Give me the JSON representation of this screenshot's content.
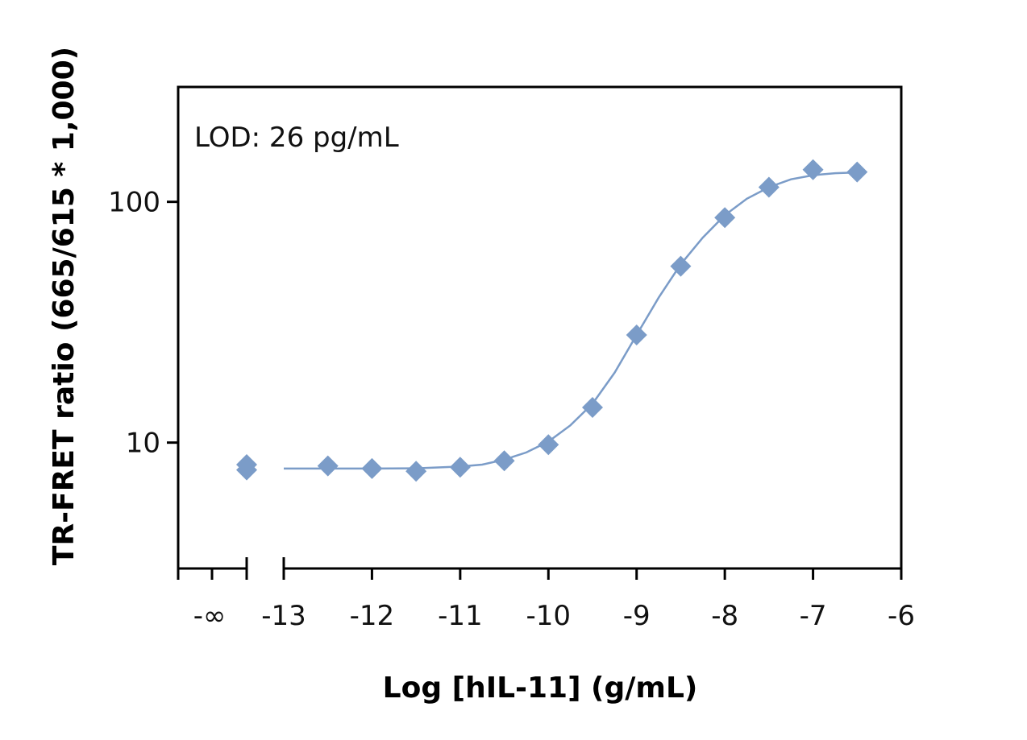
{
  "chart_data": {
    "type": "scatter",
    "xlabel": "Log [hIL-11] (g/mL)",
    "ylabel": "TR-FRET ratio (665/615 * 1,000)",
    "annotation": "LOD: 26 pg/mL",
    "x_scale": "log10 concentration",
    "y_scale": "log",
    "xlim": [
      -13,
      -6
    ],
    "ylim": [
      3,
      300
    ],
    "x_ticks": [
      -13,
      -12,
      -11,
      -10,
      -9,
      -8,
      -7,
      -6
    ],
    "x_tick_labels": [
      "-13",
      "-12",
      "-11",
      "-10",
      "-9",
      "-8",
      "-7",
      "-6"
    ],
    "x_break_label": "-∞",
    "y_ticks": [
      10,
      100
    ],
    "y_tick_labels": [
      "10",
      "100"
    ],
    "grid": false,
    "marker": "diamond",
    "color": "#7b9cc8",
    "blank_points": [
      {
        "x": "-∞",
        "y": 8.1
      },
      {
        "x": "-∞",
        "y": 7.7
      }
    ],
    "points": [
      {
        "x": -12.5,
        "y": 8.0
      },
      {
        "x": -12.0,
        "y": 7.8
      },
      {
        "x": -11.5,
        "y": 7.6
      },
      {
        "x": -11.0,
        "y": 7.9
      },
      {
        "x": -10.5,
        "y": 8.4
      },
      {
        "x": -10.0,
        "y": 9.8
      },
      {
        "x": -9.5,
        "y": 14.0
      },
      {
        "x": -9.0,
        "y": 28.0
      },
      {
        "x": -8.5,
        "y": 54.0
      },
      {
        "x": -8.0,
        "y": 86.0
      },
      {
        "x": -7.5,
        "y": 115.0
      },
      {
        "x": -7.0,
        "y": 136.0
      },
      {
        "x": -6.5,
        "y": 133.0
      }
    ],
    "fit_curve": [
      {
        "x": -13.0,
        "y": 7.8
      },
      {
        "x": -12.5,
        "y": 7.8
      },
      {
        "x": -12.0,
        "y": 7.8
      },
      {
        "x": -11.5,
        "y": 7.82
      },
      {
        "x": -11.0,
        "y": 7.95
      },
      {
        "x": -10.75,
        "y": 8.1
      },
      {
        "x": -10.5,
        "y": 8.5
      },
      {
        "x": -10.25,
        "y": 9.1
      },
      {
        "x": -10.0,
        "y": 10.1
      },
      {
        "x": -9.75,
        "y": 11.8
      },
      {
        "x": -9.5,
        "y": 14.5
      },
      {
        "x": -9.25,
        "y": 19.5
      },
      {
        "x": -9.0,
        "y": 28.0
      },
      {
        "x": -8.75,
        "y": 40.0
      },
      {
        "x": -8.5,
        "y": 55.0
      },
      {
        "x": -8.25,
        "y": 71.0
      },
      {
        "x": -8.0,
        "y": 88.0
      },
      {
        "x": -7.75,
        "y": 103.0
      },
      {
        "x": -7.5,
        "y": 115.0
      },
      {
        "x": -7.25,
        "y": 124.0
      },
      {
        "x": -7.0,
        "y": 129.0
      },
      {
        "x": -6.75,
        "y": 131.5
      },
      {
        "x": -6.5,
        "y": 132.5
      }
    ]
  }
}
